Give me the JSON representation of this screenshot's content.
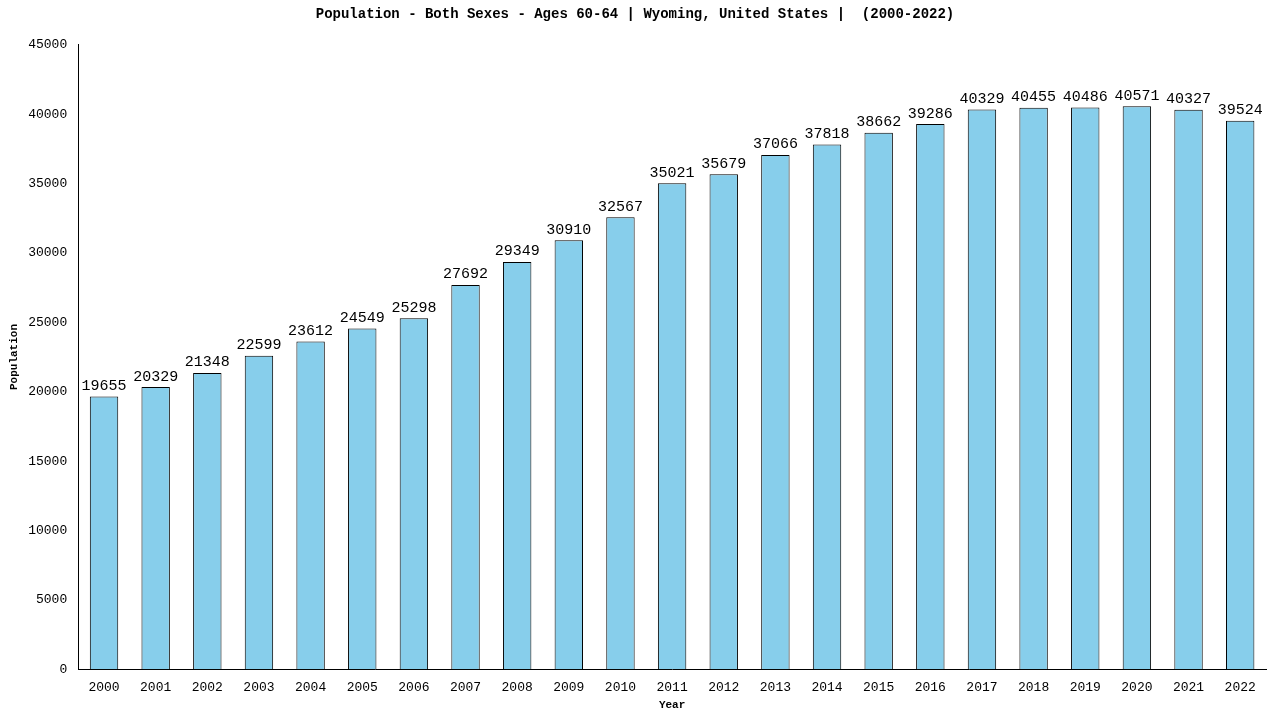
{
  "chart_data": {
    "type": "bar",
    "title": "Population - Both Sexes - Ages 60-64 | Wyoming, United States |  (2000-2022)",
    "x_label": "Year",
    "y_label": "Population",
    "categories": [
      "2000",
      "2001",
      "2002",
      "2003",
      "2004",
      "2005",
      "2006",
      "2007",
      "2008",
      "2009",
      "2010",
      "2011",
      "2012",
      "2013",
      "2014",
      "2015",
      "2016",
      "2017",
      "2018",
      "2019",
      "2020",
      "2021",
      "2022"
    ],
    "values": [
      19655,
      20329,
      21348,
      22599,
      23612,
      24549,
      25298,
      27692,
      29349,
      30910,
      32567,
      35021,
      35679,
      37066,
      37818,
      38662,
      39286,
      40329,
      40455,
      40486,
      40571,
      40327,
      39524
    ],
    "color": "#87ceeb",
    "ylim": [
      0,
      45000
    ],
    "yticks": [
      0,
      5000,
      10000,
      15000,
      20000,
      25000,
      30000,
      35000,
      40000,
      45000
    ],
    "grid": false,
    "data_labels": true
  }
}
